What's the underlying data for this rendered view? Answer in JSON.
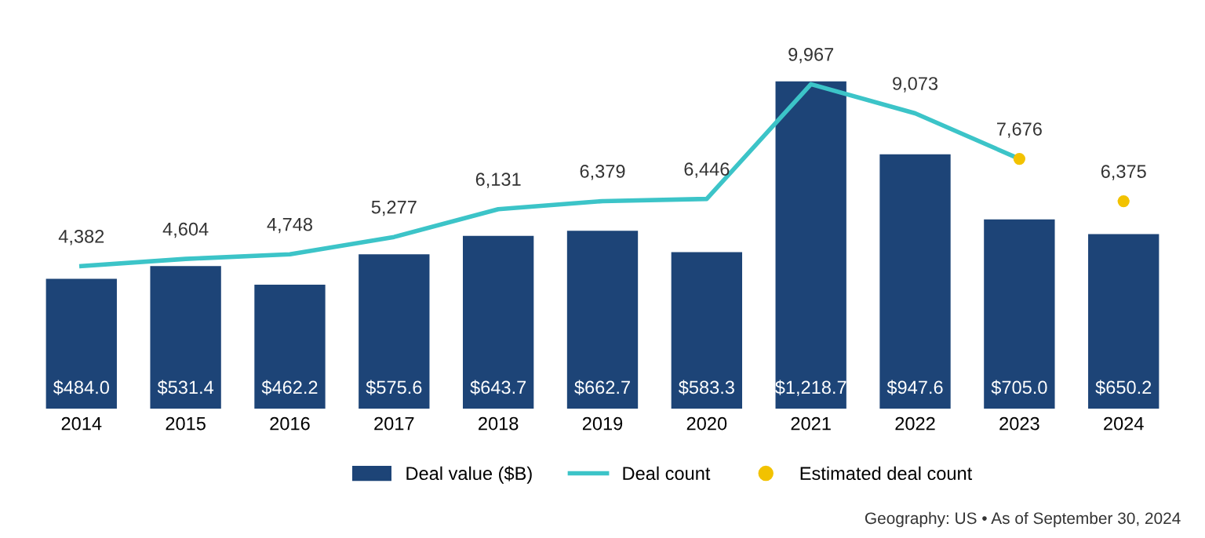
{
  "chart_data": {
    "type": "bar",
    "categories": [
      "2014",
      "2015",
      "2016",
      "2017",
      "2018",
      "2019",
      "2020",
      "2021",
      "2022",
      "2023",
      "2024"
    ],
    "tick_labels": "x",
    "grid": false,
    "legend": "bottom",
    "data_labels": true,
    "series": [
      {
        "name": "Deal value ($B)",
        "color": "#1d4477",
        "values": [
          484.0,
          531.4,
          462.2,
          575.6,
          643.7,
          662.7,
          583.3,
          1218.7,
          947.6,
          705.0,
          650.2
        ],
        "value_labels": [
          "$484.0",
          "$531.4",
          "$462.2",
          "$575.6",
          "$643.7",
          "$662.7",
          "$583.3",
          "$1,218.7",
          "$947.6",
          "$705.0",
          "$650.2"
        ]
      },
      {
        "name": "Deal count",
        "type": "line",
        "axis": "y2",
        "color": "#3cc4c8",
        "marker": "none",
        "line_style": "solid",
        "values": [
          4382,
          4604,
          4748,
          5277,
          6131,
          6379,
          6446,
          9967,
          9073,
          7676,
          null
        ],
        "value_labels": [
          "4,382",
          "4,604",
          "4,748",
          "5,277",
          "6,131",
          "6,379",
          "6,446",
          "9,967",
          "9,073",
          null,
          null
        ]
      },
      {
        "name": "Estimated deal count",
        "type": "scatter",
        "axis": "y2",
        "color": "#f2c200",
        "marker": "circle",
        "values": [
          null,
          null,
          null,
          null,
          null,
          null,
          null,
          null,
          null,
          7676,
          6375
        ],
        "value_labels": [
          null,
          null,
          null,
          null,
          null,
          null,
          null,
          null,
          null,
          "7,676",
          "6,375"
        ]
      }
    ],
    "annotations": [
      "Geography: US • As of September 30, 2024"
    ]
  }
}
